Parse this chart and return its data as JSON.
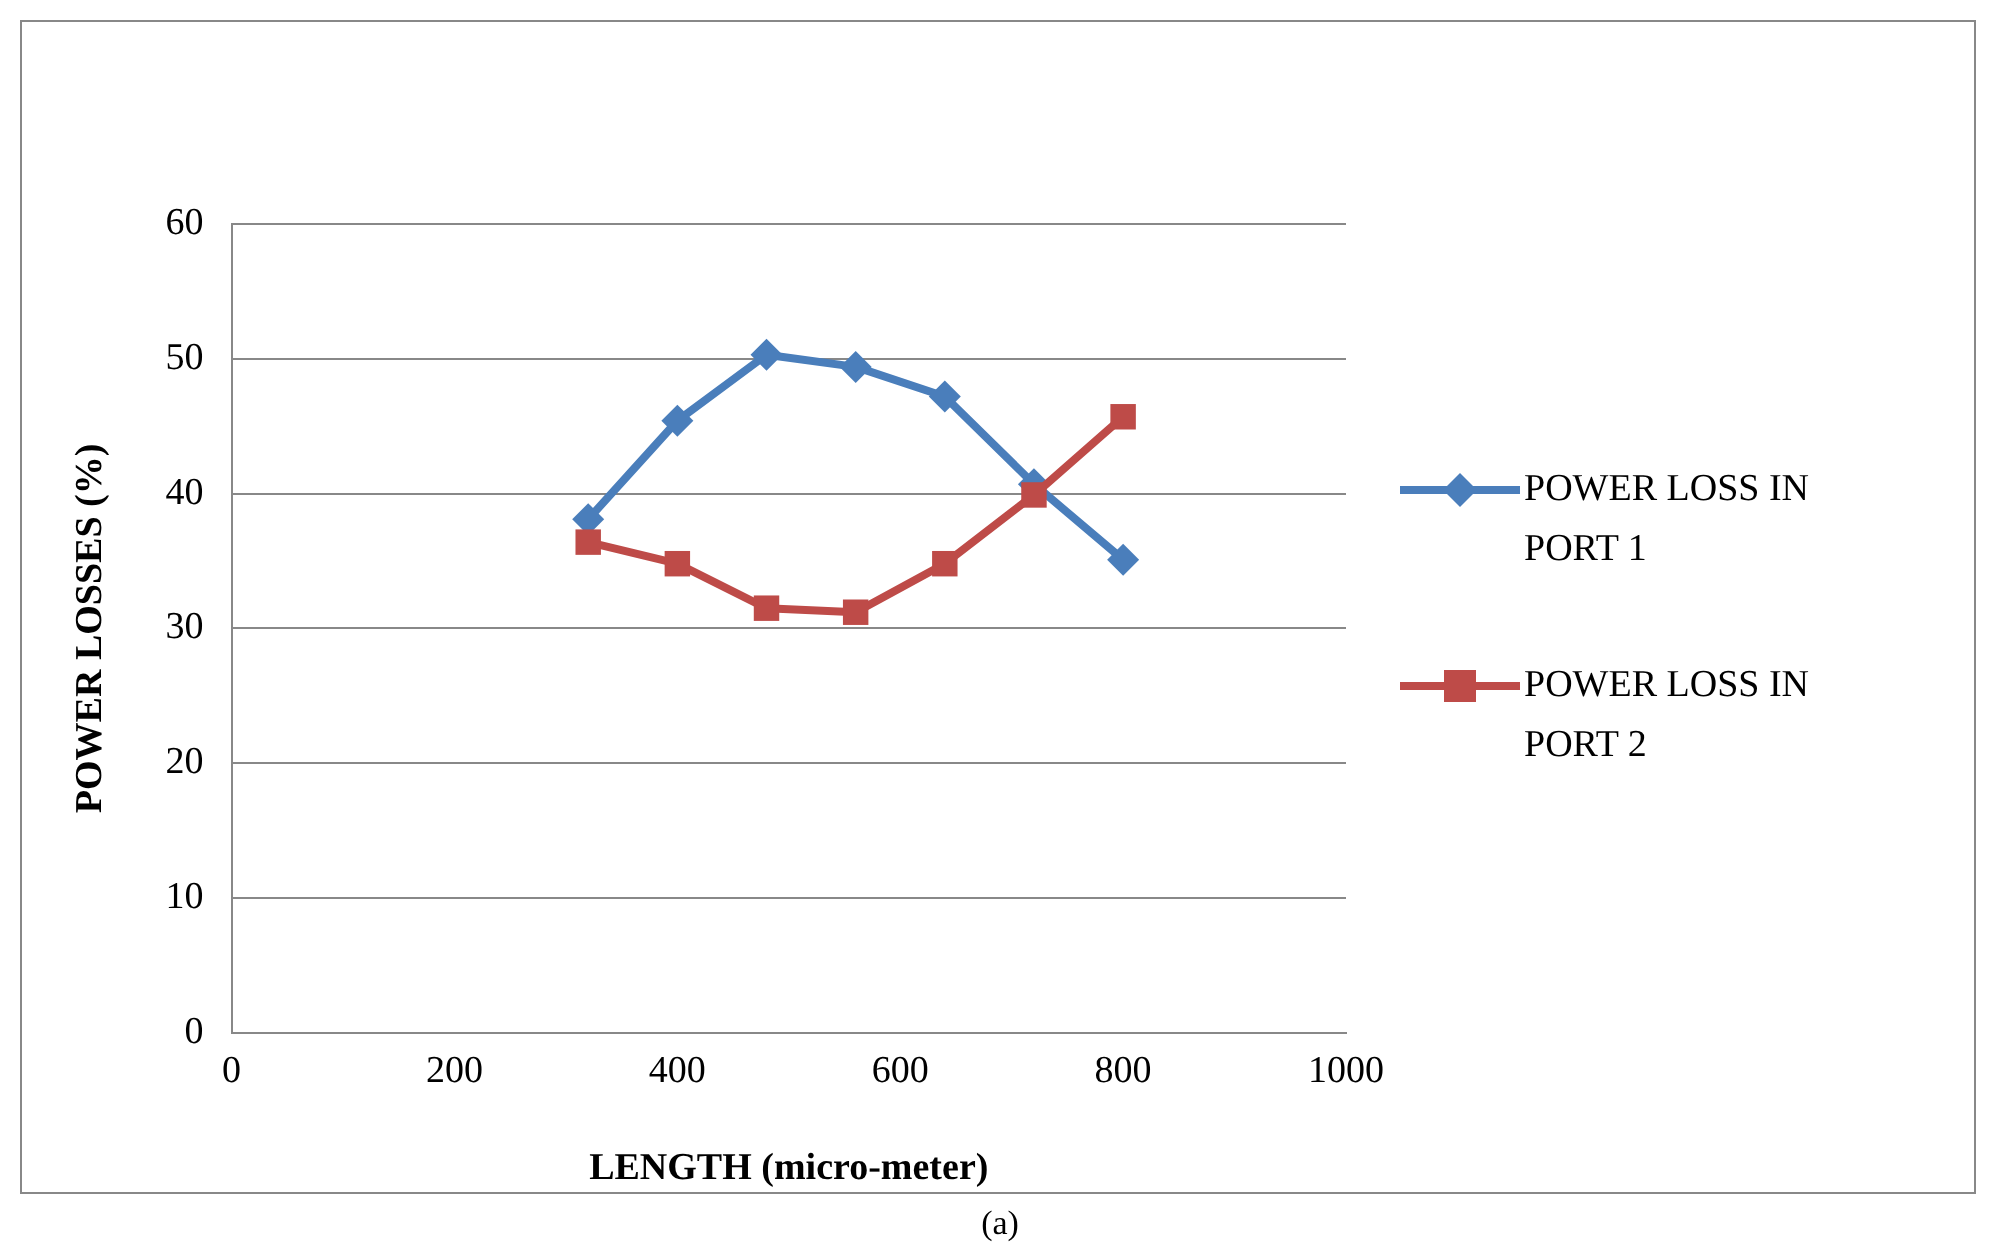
{
  "chart_data": {
    "type": "line",
    "xlabel": "LENGTH (micro-meter)",
    "ylabel": "POWER LOSSES (%)",
    "x": [
      320,
      400,
      480,
      560,
      640,
      720,
      800
    ],
    "series": [
      {
        "name": "POWER LOSS IN PORT 1",
        "color": "#4a7ebb",
        "marker": "diamond",
        "values": [
          38.1,
          45.4,
          50.3,
          49.4,
          47.2,
          40.7,
          35.1
        ]
      },
      {
        "name": "POWER LOSS IN PORT 2",
        "color": "#be4b48",
        "marker": "square",
        "values": [
          36.4,
          34.8,
          31.5,
          31.2,
          34.8,
          39.9,
          45.7
        ]
      }
    ],
    "xlim": [
      0,
      1000
    ],
    "xticks": [
      0,
      200,
      400,
      600,
      800,
      1000
    ],
    "ylim": [
      0,
      60
    ],
    "yticks": [
      0,
      10,
      20,
      30,
      40,
      50,
      60
    ],
    "grid": "y",
    "legend": "right",
    "annotations": [
      "(a)"
    ]
  }
}
